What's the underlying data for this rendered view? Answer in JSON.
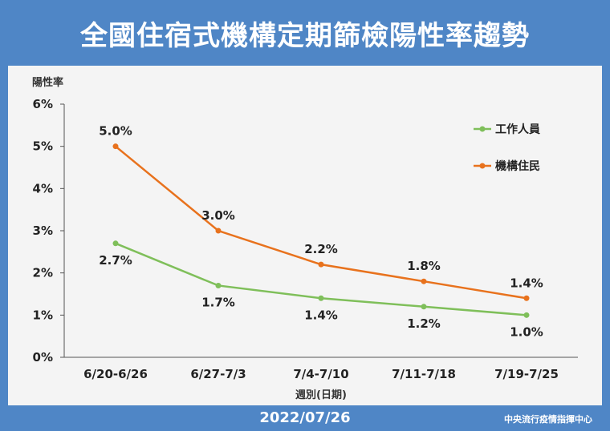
{
  "header": {
    "title": "全國住宿式機構定期篩檢陽性率趨勢"
  },
  "footer": {
    "date": "2022/07/26",
    "source": "中央流行疫情指揮中心"
  },
  "colors": {
    "banner": "#4f86c6",
    "staff": "#7fbf5a",
    "residents": "#e8721d"
  },
  "chart_data": {
    "type": "line",
    "title": "全國住宿式機構定期篩檢陽性率趨勢",
    "xlabel": "週別(日期)",
    "ylabel": "陽性率",
    "categories": [
      "6/20-6/26",
      "6/27-7/3",
      "7/4-7/10",
      "7/11-7/18",
      "7/19-7/25"
    ],
    "yticks": [
      "0%",
      "1%",
      "2%",
      "3%",
      "4%",
      "5%",
      "6%"
    ],
    "ylim": [
      0,
      6
    ],
    "grid": false,
    "legend_position": "top-right",
    "series": [
      {
        "name": "工作人員",
        "color": "#7fbf5a",
        "values": [
          2.7,
          1.7,
          1.4,
          1.2,
          1.0
        ],
        "labels": [
          "2.7%",
          "1.7%",
          "1.4%",
          "1.2%",
          "1.0%"
        ]
      },
      {
        "name": "機構住民",
        "color": "#e8721d",
        "values": [
          5.0,
          3.0,
          2.2,
          1.8,
          1.4
        ],
        "labels": [
          "5.0%",
          "3.0%",
          "2.2%",
          "1.8%",
          "1.4%"
        ]
      }
    ]
  }
}
